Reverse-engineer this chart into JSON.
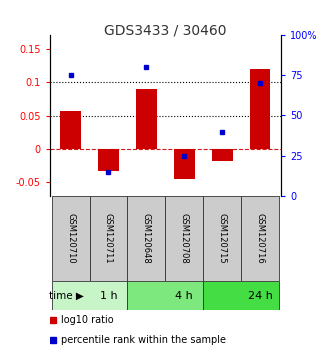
{
  "title": "GDS3433 / 30460",
  "samples": [
    "GSM120710",
    "GSM120711",
    "GSM120648",
    "GSM120708",
    "GSM120715",
    "GSM120716"
  ],
  "log10_ratio": [
    0.057,
    -0.033,
    0.09,
    -0.045,
    -0.018,
    0.12
  ],
  "percentile_rank": [
    75,
    15,
    80,
    25,
    40,
    70
  ],
  "time_groups": [
    {
      "label": "1 h",
      "start": 0,
      "end": 2,
      "color": "#c8f5c8"
    },
    {
      "label": "4 h",
      "start": 2,
      "end": 4,
      "color": "#7de87d"
    },
    {
      "label": "24 h",
      "start": 4,
      "end": 6,
      "color": "#44dd44"
    }
  ],
  "bar_color": "#cc0000",
  "dot_color": "#0000cc",
  "bar_width": 0.55,
  "ylim_left": [
    -0.07,
    0.17
  ],
  "ylim_right": [
    0,
    100
  ],
  "yticks_left": [
    -0.05,
    0.0,
    0.05,
    0.1,
    0.15
  ],
  "yticks_right": [
    0,
    25,
    50,
    75,
    100
  ],
  "hlines": [
    0.05,
    0.1
  ],
  "zero_line_color": "#cc0000",
  "hline_color": "black",
  "title_fontsize": 10,
  "tick_fontsize": 7,
  "legend_fontsize": 7,
  "sample_fontsize": 6,
  "sample_box_color": "#cccccc",
  "sample_box_edge": "#333333"
}
